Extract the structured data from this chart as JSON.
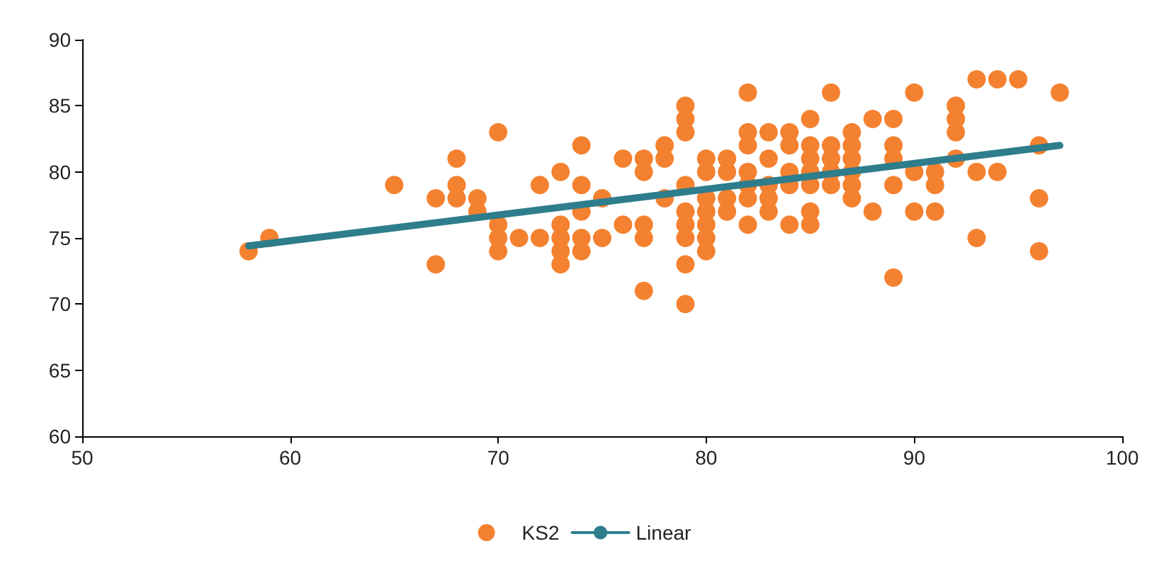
{
  "chart_data": {
    "type": "scatter",
    "xlim": [
      50,
      100
    ],
    "xticks": [
      50,
      60,
      70,
      80,
      90,
      100
    ],
    "ylim": [
      60,
      90
    ],
    "yticks": [
      60,
      65,
      70,
      75,
      80,
      85,
      90
    ],
    "grid": false,
    "legend": "bottom",
    "marker": "circle",
    "series": [
      {
        "name": "KS2",
        "color": "#f4812f",
        "x": [
          58,
          59,
          65,
          67,
          67,
          68,
          68,
          68,
          69,
          69,
          70,
          70,
          70,
          70,
          71,
          72,
          72,
          73,
          73,
          73,
          73,
          73,
          74,
          74,
          74,
          74,
          74,
          75,
          75,
          76,
          76,
          77,
          77,
          77,
          77,
          77,
          78,
          78,
          78,
          79,
          79,
          79,
          79,
          79,
          79,
          79,
          79,
          79,
          80,
          80,
          80,
          80,
          80,
          80,
          80,
          81,
          81,
          81,
          81,
          82,
          82,
          82,
          82,
          82,
          82,
          82,
          83,
          83,
          83,
          83,
          83,
          84,
          84,
          84,
          84,
          84,
          85,
          85,
          85,
          85,
          85,
          85,
          85,
          86,
          86,
          86,
          86,
          86,
          87,
          87,
          87,
          87,
          87,
          87,
          88,
          88,
          89,
          89,
          89,
          89,
          89,
          90,
          90,
          90,
          91,
          91,
          91,
          92,
          92,
          92,
          92,
          93,
          93,
          93,
          94,
          94,
          95,
          96,
          96,
          96,
          97
        ],
        "values": [
          74,
          75,
          79,
          78,
          73,
          81,
          79,
          78,
          78,
          77,
          83,
          76,
          75,
          74,
          75,
          79,
          75,
          80,
          76,
          75,
          74,
          73,
          82,
          79,
          77,
          75,
          74,
          78,
          75,
          81,
          76,
          81,
          80,
          76,
          75,
          71,
          82,
          81,
          78,
          85,
          84,
          83,
          79,
          77,
          76,
          75,
          73,
          70,
          81,
          80,
          78,
          77,
          76,
          75,
          74,
          81,
          80,
          78,
          77,
          86,
          83,
          82,
          80,
          79,
          78,
          76,
          83,
          81,
          79,
          78,
          77,
          83,
          82,
          80,
          79,
          76,
          84,
          82,
          81,
          80,
          79,
          77,
          76,
          86,
          82,
          81,
          80,
          79,
          83,
          82,
          81,
          80,
          79,
          78,
          84,
          77,
          84,
          82,
          81,
          79,
          72,
          86,
          80,
          77,
          80,
          79,
          77,
          85,
          84,
          83,
          81,
          87,
          80,
          75,
          87,
          80,
          87,
          82,
          78,
          74,
          86
        ]
      },
      {
        "name": "Linear",
        "type": "line",
        "color": "#2e7d8c",
        "x": [
          58,
          97
        ],
        "values": [
          74.4,
          82.0
        ],
        "marker": "none"
      }
    ]
  }
}
